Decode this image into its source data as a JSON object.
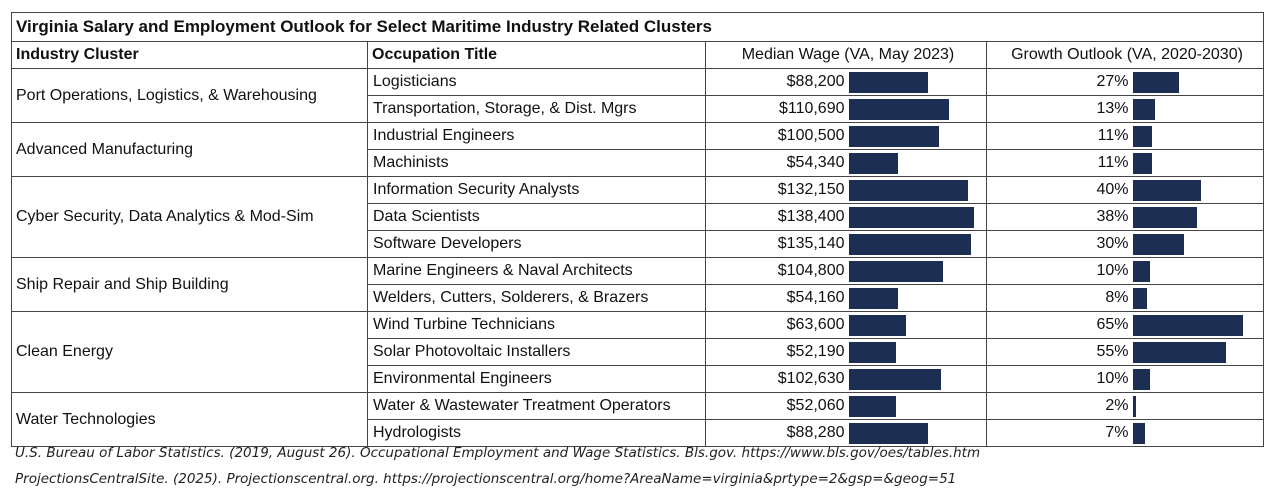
{
  "chart_data": {
    "type": "table",
    "title": "Virginia Salary and Employment Outlook for Select Maritime Industry Related Clusters",
    "headers": {
      "cluster": "Industry Cluster",
      "occupation": "Occupation Title",
      "wage": "Median Wage (VA, May 2023)",
      "growth": "Growth Outlook (VA, 2020-2030)"
    },
    "wage_max": 140000,
    "growth_max": 65,
    "groups": [
      {
        "cluster": "Port Operations, Logistics, & Warehousing",
        "rows": [
          {
            "occupation": "Logisticians",
            "wage_label": "$88,200",
            "wage": 88200,
            "growth_label": "27%",
            "growth": 27
          },
          {
            "occupation": "Transportation, Storage, & Dist. Mgrs",
            "wage_label": "$110,690",
            "wage": 110690,
            "growth_label": "13%",
            "growth": 13
          }
        ]
      },
      {
        "cluster": "Advanced Manufacturing",
        "rows": [
          {
            "occupation": "Industrial Engineers",
            "wage_label": "$100,500",
            "wage": 100500,
            "growth_label": "11%",
            "growth": 11
          },
          {
            "occupation": "Machinists",
            "wage_label": "$54,340",
            "wage": 54340,
            "growth_label": "11%",
            "growth": 11
          }
        ]
      },
      {
        "cluster": "Cyber Security, Data Analytics & Mod-Sim",
        "rows": [
          {
            "occupation": "Information Security Analysts",
            "wage_label": "$132,150",
            "wage": 132150,
            "growth_label": "40%",
            "growth": 40
          },
          {
            "occupation": "Data Scientists",
            "wage_label": "$138,400",
            "wage": 138400,
            "growth_label": "38%",
            "growth": 38
          },
          {
            "occupation": "Software Developers",
            "wage_label": "$135,140",
            "wage": 135140,
            "growth_label": "30%",
            "growth": 30
          }
        ]
      },
      {
        "cluster": "Ship Repair and Ship Building",
        "rows": [
          {
            "occupation": "Marine Engineers & Naval Architects",
            "wage_label": "$104,800",
            "wage": 104800,
            "growth_label": "10%",
            "growth": 10
          },
          {
            "occupation": "Welders, Cutters, Solderers, & Brazers",
            "wage_label": "$54,160",
            "wage": 54160,
            "growth_label": "8%",
            "growth": 8
          }
        ]
      },
      {
        "cluster": "Clean Energy",
        "rows": [
          {
            "occupation": "Wind Turbine Technicians",
            "wage_label": "$63,600",
            "wage": 63600,
            "growth_label": "65%",
            "growth": 65
          },
          {
            "occupation": "Solar Photovoltaic Installers",
            "wage_label": "$52,190",
            "wage": 52190,
            "growth_label": "55%",
            "growth": 55
          },
          {
            "occupation": "Environmental Engineers",
            "wage_label": "$102,630",
            "wage": 102630,
            "growth_label": "10%",
            "growth": 10
          }
        ]
      },
      {
        "cluster": "Water Technologies",
        "rows": [
          {
            "occupation": "Water & Wastewater Treatment Operators",
            "wage_label": "$52,060",
            "wage": 52060,
            "growth_label": "2%",
            "growth": 2
          },
          {
            "occupation": "Hydrologists",
            "wage_label": "$88,280",
            "wage": 88280,
            "growth_label": "7%",
            "growth": 7
          }
        ]
      }
    ],
    "bar_color": "#1c2e52"
  },
  "notes": [
    "U.S. Bureau of Labor Statistics. (2019, August 26). Occupational Employment and Wage Statistics. Bls.gov. https://www.bls.gov/oes/tables.htm",
    "ProjectionsCentralSite. (2025). Projectionscentral.org. https://projectionscentral.org/home?AreaName=virginia&prtype=2&gsp=&geog=51"
  ]
}
